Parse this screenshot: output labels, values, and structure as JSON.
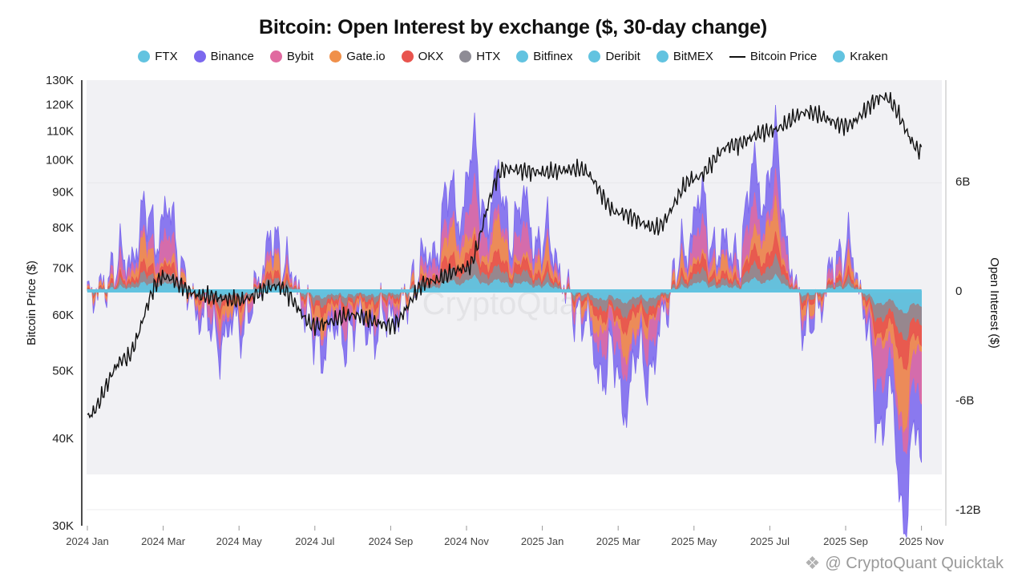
{
  "chart_data": {
    "type": "area",
    "title": "Bitcoin: Open Interest by exchange ($, 30-day change)",
    "left_axis_label": "Bitcoin Price ($)",
    "right_axis_label": "Open Interest ($)",
    "left_axis": {
      "scale": "log",
      "range": [
        30000,
        130000
      ],
      "ticks": [
        {
          "v": 130000,
          "label": "130K"
        },
        {
          "v": 120000,
          "label": "120K"
        },
        {
          "v": 110000,
          "label": "110K"
        },
        {
          "v": 100000,
          "label": "100K"
        },
        {
          "v": 90000,
          "label": "90K"
        },
        {
          "v": 80000,
          "label": "80K"
        },
        {
          "v": 70000,
          "label": "70K"
        },
        {
          "v": 60000,
          "label": "60K"
        },
        {
          "v": 50000,
          "label": "50K"
        },
        {
          "v": 40000,
          "label": "40K"
        },
        {
          "v": 30000,
          "label": "30K"
        }
      ]
    },
    "right_axis": {
      "unit": "B",
      "range": [
        -12,
        6
      ],
      "ticks": [
        {
          "v": 6,
          "label": "6B"
        },
        {
          "v": 0,
          "label": "0"
        },
        {
          "v": -6,
          "label": "-6B"
        },
        {
          "v": -12,
          "label": "-12B"
        }
      ]
    },
    "x_ticks": [
      "2024 Jan",
      "2024 Mar",
      "2024 May",
      "2024 Jul",
      "2024 Sep",
      "2024 Nov",
      "2025 Jan",
      "2025 Mar",
      "2025 May",
      "2025 Jul",
      "2025 Sep",
      "2025 Nov"
    ],
    "legend_position": "top",
    "grid": true,
    "series": [
      {
        "name": "FTX",
        "color": "#62c3e0"
      },
      {
        "name": "Binance",
        "color": "#7b68ee"
      },
      {
        "name": "Bybit",
        "color": "#e06aa0"
      },
      {
        "name": "Gate.io",
        "color": "#f0904a"
      },
      {
        "name": "OKX",
        "color": "#e8544e"
      },
      {
        "name": "HTX",
        "color": "#8e8c95"
      },
      {
        "name": "Bitfinex",
        "color": "#62c3e0"
      },
      {
        "name": "Deribit",
        "color": "#62c3e0"
      },
      {
        "name": "BitMEX",
        "color": "#62c3e0"
      },
      {
        "name": "Bitcoin Price",
        "color": "#111111",
        "line": true
      },
      {
        "name": "Kraken",
        "color": "#62c3e0"
      }
    ],
    "btc_price_monthly": [
      {
        "month": "2024 Jan",
        "price": 43000
      },
      {
        "month": "2024 Feb",
        "price": 52000
      },
      {
        "month": "2024 Mar",
        "price": 68000
      },
      {
        "month": "2024 Apr",
        "price": 64000
      },
      {
        "month": "2024 May",
        "price": 63000
      },
      {
        "month": "2024 Jun",
        "price": 66000
      },
      {
        "month": "2024 Jul",
        "price": 58000
      },
      {
        "month": "2024 Aug",
        "price": 60000
      },
      {
        "month": "2024 Sep",
        "price": 58000
      },
      {
        "month": "2024 Oct",
        "price": 67000
      },
      {
        "month": "2024 Nov",
        "price": 70000
      },
      {
        "month": "2024 Dec",
        "price": 97000
      },
      {
        "month": "2025 Jan",
        "price": 96000
      },
      {
        "month": "2025 Feb",
        "price": 97000
      },
      {
        "month": "2025 Mar",
        "price": 84000
      },
      {
        "month": "2025 Apr",
        "price": 80000
      },
      {
        "month": "2025 May",
        "price": 94000
      },
      {
        "month": "2025 Jun",
        "price": 105000
      },
      {
        "month": "2025 Jul",
        "price": 110000
      },
      {
        "month": "2025 Aug",
        "price": 117000
      },
      {
        "month": "2025 Sep",
        "price": 112000
      },
      {
        "month": "2025 Oct",
        "price": 123000
      },
      {
        "month": "2025 Nov",
        "price": 103000
      }
    ],
    "total_oi_change_monthly_B": [
      {
        "month": "2024 Jan",
        "value": -0.4
      },
      {
        "month": "2024 Feb",
        "value": 1.8
      },
      {
        "month": "2024 Mar",
        "value": 4.0
      },
      {
        "month": "2024 Apr",
        "value": -1.5
      },
      {
        "month": "2024 May",
        "value": -2.0
      },
      {
        "month": "2024 Jun",
        "value": 2.5
      },
      {
        "month": "2024 Jul",
        "value": -2.5
      },
      {
        "month": "2024 Aug",
        "value": -2.0
      },
      {
        "month": "2024 Sep",
        "value": -1.5
      },
      {
        "month": "2024 Oct",
        "value": 2.0
      },
      {
        "month": "2024 Nov",
        "value": 6.0
      },
      {
        "month": "2024 Dec",
        "value": 4.5
      },
      {
        "month": "2025 Jan",
        "value": 3.0
      },
      {
        "month": "2025 Feb",
        "value": -1.5
      },
      {
        "month": "2025 Mar",
        "value": -5.0
      },
      {
        "month": "2025 Apr",
        "value": -3.0
      },
      {
        "month": "2025 May",
        "value": 4.0
      },
      {
        "month": "2025 Jun",
        "value": 2.0
      },
      {
        "month": "2025 Jul",
        "value": 7.0
      },
      {
        "month": "2025 Aug",
        "value": -2.0
      },
      {
        "month": "2025 Sep",
        "value": 2.5
      },
      {
        "month": "2025 Oct",
        "value": -7.0
      },
      {
        "month": "2025 Nov",
        "value": -11.0
      }
    ]
  },
  "watermark": "CryptoQuant",
  "footer": {
    "icon": "binance-square-icon",
    "text": "@ CryptoQuant Quicktak"
  }
}
